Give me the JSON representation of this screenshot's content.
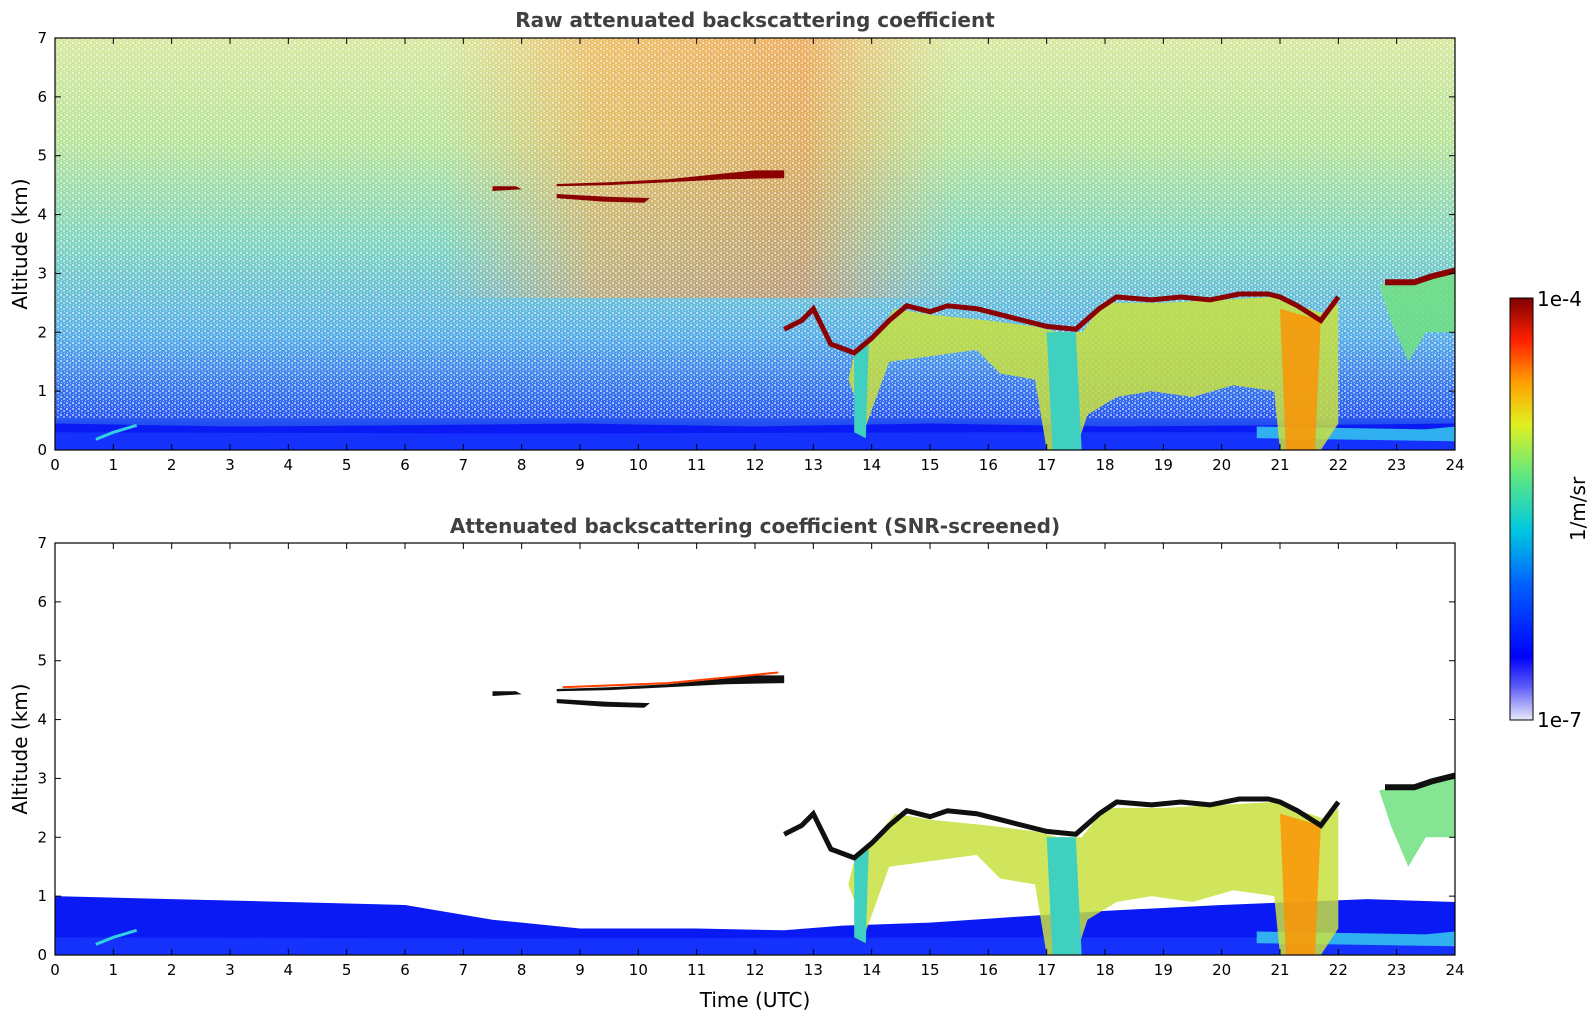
{
  "chart_data": [
    {
      "type": "heatmap",
      "title": "Raw attenuated backscattering coefficient",
      "xlabel": "",
      "ylabel": "Altitude (km)",
      "xlim": [
        0,
        24
      ],
      "ylim": [
        0,
        7
      ],
      "xticks": [
        "0",
        "1",
        "2",
        "3",
        "4",
        "5",
        "6",
        "7",
        "8",
        "9",
        "10",
        "11",
        "12",
        "13",
        "14",
        "15",
        "16",
        "17",
        "18",
        "19",
        "20",
        "21",
        "22",
        "23",
        "24"
      ],
      "yticks": [
        "0",
        "1",
        "2",
        "3",
        "4",
        "5",
        "6",
        "7"
      ],
      "features": [
        {
          "name": "boundary-layer",
          "x": [
            0,
            24
          ],
          "y": [
            0,
            0.45
          ]
        },
        {
          "name": "high-layer-upper",
          "x": [
            8.6,
            12.5
          ],
          "y": [
            4.5,
            4.8
          ]
        },
        {
          "name": "high-layer-lower",
          "x": [
            7.5,
            10.2
          ],
          "y": [
            4.2,
            4.5
          ]
        },
        {
          "name": "cloud-top",
          "x": [
            12.5,
            24
          ],
          "y": [
            1.5,
            3.1
          ]
        }
      ]
    },
    {
      "type": "heatmap",
      "title": "Attenuated backscattering coefficient (SNR-screened)",
      "xlabel": "Time (UTC)",
      "ylabel": "Altitude (km)",
      "xlim": [
        0,
        24
      ],
      "ylim": [
        0,
        7
      ],
      "xticks": [
        "0",
        "1",
        "2",
        "3",
        "4",
        "5",
        "6",
        "7",
        "8",
        "9",
        "10",
        "11",
        "12",
        "13",
        "14",
        "15",
        "16",
        "17",
        "18",
        "19",
        "20",
        "21",
        "22",
        "23",
        "24"
      ],
      "yticks": [
        "0",
        "1",
        "2",
        "3",
        "4",
        "5",
        "6",
        "7"
      ]
    }
  ],
  "colorbar": {
    "label": "1/m/sr",
    "max_label": "1e-4",
    "min_label": "1e-7",
    "colormap": [
      "#e8e8f8",
      "#0000ff",
      "#00a0ff",
      "#00e0c0",
      "#a0f060",
      "#ffff00",
      "#ffa000",
      "#ff2000",
      "#800000"
    ]
  }
}
